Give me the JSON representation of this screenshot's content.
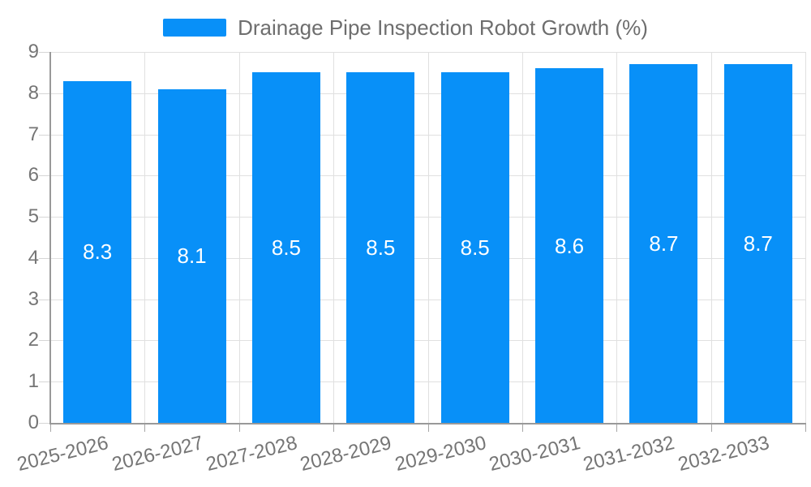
{
  "chart_data": {
    "type": "bar",
    "title": "Drainage Pipe Inspection Robot Growth (%)",
    "series_name": "Drainage Pipe Inspection Robot Growth (%)",
    "categories": [
      "2025-2026",
      "2026-2027",
      "2027-2028",
      "2028-2029",
      "2029-2030",
      "2030-2031",
      "2031-2032",
      "2032-2033"
    ],
    "values": [
      8.3,
      8.1,
      8.5,
      8.5,
      8.5,
      8.6,
      8.7,
      8.7
    ],
    "value_labels": [
      "8.3",
      "8.1",
      "8.5",
      "8.5",
      "8.5",
      "8.6",
      "8.7",
      "8.7"
    ],
    "xlabel": "",
    "ylabel": "",
    "ylim": [
      0,
      9
    ],
    "yticks": [
      0,
      1,
      2,
      3,
      4,
      5,
      6,
      7,
      8,
      9
    ],
    "grid": true,
    "legend_position": "top-center",
    "colors": {
      "bar": "#0890F8",
      "value_label": "#FFFFFF",
      "axis_text": "#757575",
      "gridline": "#E0E0E0",
      "axis_line": "#999999",
      "background": "#FFFFFF"
    }
  }
}
